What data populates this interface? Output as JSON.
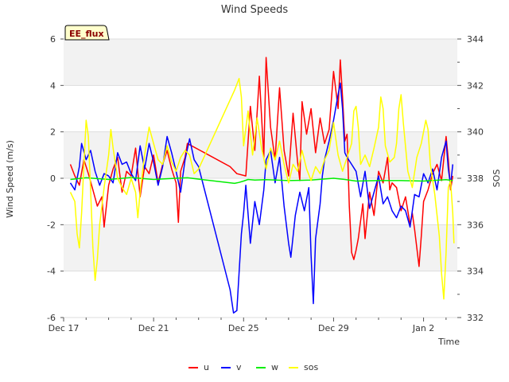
{
  "chart_data": {
    "type": "line",
    "title": "Wind Speeds",
    "site_badge": "EE_flux",
    "xlabel": "Time",
    "ylabel": "Wind Speed (m/s)",
    "y2label": "SOS",
    "x_ticks": [
      {
        "day": 0,
        "label": "Dec 17"
      },
      {
        "day": 4,
        "label": "Dec 21"
      },
      {
        "day": 8,
        "label": "Dec 25"
      },
      {
        "day": 12,
        "label": "Dec 29"
      },
      {
        "day": 16,
        "label": "Jan 2"
      }
    ],
    "xlim": [
      0,
      17.5
    ],
    "ylim": [
      -6,
      6
    ],
    "y_ticks": [
      -6,
      -4,
      -2,
      0,
      2,
      4,
      6
    ],
    "y2lim": [
      332,
      344
    ],
    "y2_ticks": [
      332,
      334,
      336,
      338,
      340,
      342,
      344
    ],
    "series": [
      {
        "name": "u",
        "color": "#ff0000",
        "axis": "left",
        "points": [
          [
            0.3,
            0.6
          ],
          [
            0.5,
            0.1
          ],
          [
            0.7,
            -0.3
          ],
          [
            0.9,
            0.8
          ],
          [
            1.1,
            0.2
          ],
          [
            1.3,
            -0.5
          ],
          [
            1.5,
            -1.2
          ],
          [
            1.7,
            -0.8
          ],
          [
            1.8,
            -2.1
          ],
          [
            2.0,
            -0.3
          ],
          [
            2.2,
            0.4
          ],
          [
            2.4,
            0.9
          ],
          [
            2.6,
            -0.6
          ],
          [
            2.8,
            0.3
          ],
          [
            3.0,
            0.1
          ],
          [
            3.2,
            1.3
          ],
          [
            3.4,
            -0.8
          ],
          [
            3.6,
            0.5
          ],
          [
            3.8,
            0.2
          ],
          [
            4.0,
            1.0
          ],
          [
            4.2,
            -0.2
          ],
          [
            4.4,
            0.6
          ],
          [
            4.6,
            1.2
          ],
          [
            4.8,
            0.4
          ],
          [
            5.0,
            -0.2
          ],
          [
            5.1,
            -1.9
          ],
          [
            5.2,
            0.3
          ],
          [
            5.4,
            0.9
          ],
          [
            5.5,
            1.5
          ],
          [
            7.4,
            0.5
          ],
          [
            7.7,
            0.2
          ],
          [
            8.1,
            0.1
          ],
          [
            8.3,
            3.1
          ],
          [
            8.5,
            1.2
          ],
          [
            8.7,
            4.4
          ],
          [
            8.9,
            0.9
          ],
          [
            9.0,
            5.2
          ],
          [
            9.2,
            2.2
          ],
          [
            9.4,
            0.8
          ],
          [
            9.6,
            3.9
          ],
          [
            9.8,
            1.2
          ],
          [
            10.0,
            0.1
          ],
          [
            10.2,
            2.8
          ],
          [
            10.4,
            0.7
          ],
          [
            10.5,
            -0.1
          ],
          [
            10.6,
            3.3
          ],
          [
            10.8,
            1.9
          ],
          [
            11.0,
            3.0
          ],
          [
            11.2,
            1.1
          ],
          [
            11.4,
            2.6
          ],
          [
            11.6,
            1.5
          ],
          [
            11.8,
            2.1
          ],
          [
            12.0,
            4.6
          ],
          [
            12.2,
            3.0
          ],
          [
            12.3,
            5.1
          ],
          [
            12.4,
            3.5
          ],
          [
            12.5,
            1.6
          ],
          [
            12.6,
            1.9
          ],
          [
            12.7,
            -1.2
          ],
          [
            12.8,
            -3.2
          ],
          [
            12.9,
            -3.5
          ],
          [
            13.0,
            -3.1
          ],
          [
            13.1,
            -2.6
          ],
          [
            13.3,
            -1.1
          ],
          [
            13.4,
            -2.6
          ],
          [
            13.6,
            -0.6
          ],
          [
            13.8,
            -1.6
          ],
          [
            14.0,
            0.3
          ],
          [
            14.2,
            -0.2
          ],
          [
            14.4,
            0.9
          ],
          [
            14.5,
            -0.5
          ],
          [
            14.6,
            -0.2
          ],
          [
            14.8,
            -0.4
          ],
          [
            15.0,
            -1.4
          ],
          [
            15.2,
            -0.8
          ],
          [
            15.4,
            -2.0
          ],
          [
            15.5,
            -1.5
          ],
          [
            15.6,
            -2.2
          ],
          [
            15.8,
            -3.8
          ],
          [
            15.9,
            -2.5
          ],
          [
            16.0,
            -1.0
          ],
          [
            16.2,
            -0.5
          ],
          [
            16.4,
            0.2
          ],
          [
            16.6,
            0.6
          ],
          [
            16.8,
            -0.1
          ],
          [
            17.0,
            1.8
          ],
          [
            17.1,
            0.8
          ],
          [
            17.2,
            -0.5
          ],
          [
            17.3,
            0.1
          ]
        ]
      },
      {
        "name": "v",
        "color": "#0000ff",
        "axis": "left",
        "points": [
          [
            0.3,
            -0.2
          ],
          [
            0.5,
            -0.5
          ],
          [
            0.7,
            0.5
          ],
          [
            0.8,
            1.5
          ],
          [
            1.0,
            0.8
          ],
          [
            1.2,
            1.2
          ],
          [
            1.4,
            0.3
          ],
          [
            1.6,
            -0.3
          ],
          [
            1.8,
            0.2
          ],
          [
            2.0,
            0.1
          ],
          [
            2.2,
            -0.2
          ],
          [
            2.4,
            1.1
          ],
          [
            2.6,
            0.6
          ],
          [
            2.8,
            0.7
          ],
          [
            3.0,
            0.2
          ],
          [
            3.2,
            -0.1
          ],
          [
            3.4,
            1.4
          ],
          [
            3.6,
            0.4
          ],
          [
            3.8,
            1.5
          ],
          [
            4.0,
            0.7
          ],
          [
            4.2,
            -0.3
          ],
          [
            4.4,
            0.5
          ],
          [
            4.6,
            1.8
          ],
          [
            4.8,
            1.1
          ],
          [
            5.0,
            0.3
          ],
          [
            5.2,
            -0.6
          ],
          [
            5.4,
            0.8
          ],
          [
            5.6,
            1.7
          ],
          [
            5.8,
            0.8
          ],
          [
            6.0,
            0.5
          ],
          [
            7.4,
            -4.8
          ],
          [
            7.55,
            -5.8
          ],
          [
            7.7,
            -5.7
          ],
          [
            7.9,
            -2.4
          ],
          [
            8.0,
            -1.5
          ],
          [
            8.1,
            -0.3
          ],
          [
            8.3,
            -2.8
          ],
          [
            8.5,
            -1.0
          ],
          [
            8.7,
            -2.0
          ],
          [
            8.9,
            -0.5
          ],
          [
            9.0,
            0.8
          ],
          [
            9.2,
            1.2
          ],
          [
            9.4,
            -0.2
          ],
          [
            9.6,
            0.9
          ],
          [
            9.8,
            -1.2
          ],
          [
            10.0,
            -2.8
          ],
          [
            10.1,
            -3.4
          ],
          [
            10.3,
            -1.6
          ],
          [
            10.5,
            -0.6
          ],
          [
            10.7,
            -1.4
          ],
          [
            10.9,
            -0.4
          ],
          [
            11.0,
            -3.3
          ],
          [
            11.1,
            -5.4
          ],
          [
            11.2,
            -2.6
          ],
          [
            11.4,
            -1.1
          ],
          [
            11.5,
            0.1
          ],
          [
            11.6,
            0.8
          ],
          [
            11.8,
            1.6
          ],
          [
            12.0,
            2.5
          ],
          [
            12.2,
            3.6
          ],
          [
            12.3,
            4.1
          ],
          [
            12.4,
            3.0
          ],
          [
            12.5,
            1.1
          ],
          [
            12.6,
            0.9
          ],
          [
            12.8,
            0.6
          ],
          [
            13.0,
            0.3
          ],
          [
            13.2,
            -0.8
          ],
          [
            13.4,
            0.3
          ],
          [
            13.6,
            -1.3
          ],
          [
            13.8,
            -0.6
          ],
          [
            14.0,
            0.1
          ],
          [
            14.2,
            -1.1
          ],
          [
            14.4,
            -0.8
          ],
          [
            14.6,
            -1.4
          ],
          [
            14.8,
            -1.7
          ],
          [
            15.0,
            -1.2
          ],
          [
            15.2,
            -1.4
          ],
          [
            15.4,
            -2.1
          ],
          [
            15.6,
            -0.7
          ],
          [
            15.8,
            -0.8
          ],
          [
            16.0,
            0.2
          ],
          [
            16.2,
            -0.2
          ],
          [
            16.4,
            0.4
          ],
          [
            16.6,
            -0.5
          ],
          [
            16.8,
            0.9
          ],
          [
            17.0,
            1.6
          ],
          [
            17.1,
            0.4
          ],
          [
            17.2,
            -0.3
          ],
          [
            17.3,
            0.6
          ]
        ]
      },
      {
        "name": "w",
        "color": "#00ee00",
        "axis": "left",
        "points": [
          [
            0.3,
            -0.05
          ],
          [
            1.0,
            0.02
          ],
          [
            2.0,
            -0.05
          ],
          [
            3.0,
            0.03
          ],
          [
            4.0,
            -0.05
          ],
          [
            5.0,
            0.0
          ],
          [
            5.5,
            0.02
          ],
          [
            7.6,
            -0.22
          ],
          [
            7.8,
            -0.18
          ],
          [
            8.0,
            -0.12
          ],
          [
            8.2,
            -0.05
          ],
          [
            8.5,
            -0.08
          ],
          [
            9.0,
            -0.06
          ],
          [
            10.0,
            -0.1
          ],
          [
            11.0,
            -0.08
          ],
          [
            12.0,
            0.0
          ],
          [
            12.5,
            -0.05
          ],
          [
            13.0,
            -0.12
          ],
          [
            14.0,
            -0.1
          ],
          [
            15.0,
            -0.1
          ],
          [
            16.0,
            -0.12
          ],
          [
            17.0,
            -0.06
          ],
          [
            17.3,
            -0.1
          ]
        ]
      },
      {
        "name": "sos",
        "color": "#ffff00",
        "axis": "right",
        "points": [
          [
            0.3,
            337.4
          ],
          [
            0.5,
            337.0
          ],
          [
            0.6,
            335.6
          ],
          [
            0.7,
            335.0
          ],
          [
            0.8,
            336.5
          ],
          [
            0.9,
            338.6
          ],
          [
            1.0,
            340.5
          ],
          [
            1.1,
            339.8
          ],
          [
            1.2,
            337.5
          ],
          [
            1.3,
            335.0
          ],
          [
            1.4,
            333.6
          ],
          [
            1.5,
            334.5
          ],
          [
            1.6,
            336.0
          ],
          [
            1.8,
            337.6
          ],
          [
            2.0,
            339.0
          ],
          [
            2.1,
            340.1
          ],
          [
            2.2,
            339.3
          ],
          [
            2.4,
            338.0
          ],
          [
            2.6,
            337.6
          ],
          [
            2.8,
            337.3
          ],
          [
            3.0,
            338.0
          ],
          [
            3.2,
            337.4
          ],
          [
            3.3,
            336.3
          ],
          [
            3.4,
            337.4
          ],
          [
            3.6,
            339.0
          ],
          [
            3.8,
            340.2
          ],
          [
            4.0,
            339.5
          ],
          [
            4.2,
            338.8
          ],
          [
            4.4,
            338.6
          ],
          [
            4.6,
            339.4
          ],
          [
            4.8,
            338.7
          ],
          [
            5.0,
            338.3
          ],
          [
            5.2,
            338.9
          ],
          [
            5.4,
            339.2
          ],
          [
            5.6,
            339.0
          ],
          [
            5.8,
            338.2
          ],
          [
            6.0,
            338.4
          ],
          [
            7.6,
            341.8
          ],
          [
            7.8,
            342.3
          ],
          [
            7.9,
            341.5
          ],
          [
            8.0,
            339.4
          ],
          [
            8.2,
            340.9
          ],
          [
            8.4,
            339.0
          ],
          [
            8.6,
            340.6
          ],
          [
            8.8,
            339.3
          ],
          [
            9.0,
            338.4
          ],
          [
            9.2,
            339.3
          ],
          [
            9.4,
            338.8
          ],
          [
            9.6,
            339.6
          ],
          [
            9.8,
            338.6
          ],
          [
            10.0,
            337.8
          ],
          [
            10.2,
            338.6
          ],
          [
            10.4,
            338.3
          ],
          [
            10.6,
            339.2
          ],
          [
            10.8,
            338.4
          ],
          [
            11.0,
            337.9
          ],
          [
            11.2,
            338.5
          ],
          [
            11.4,
            338.2
          ],
          [
            11.6,
            338.8
          ],
          [
            11.8,
            339.2
          ],
          [
            12.0,
            340.4
          ],
          [
            12.2,
            339.0
          ],
          [
            12.4,
            338.3
          ],
          [
            12.6,
            338.9
          ],
          [
            12.8,
            339.5
          ],
          [
            12.9,
            340.9
          ],
          [
            13.0,
            341.1
          ],
          [
            13.1,
            340.2
          ],
          [
            13.2,
            338.6
          ],
          [
            13.4,
            339.0
          ],
          [
            13.6,
            338.5
          ],
          [
            13.8,
            339.3
          ],
          [
            14.0,
            340.2
          ],
          [
            14.1,
            341.5
          ],
          [
            14.2,
            341.0
          ],
          [
            14.3,
            339.4
          ],
          [
            14.5,
            338.7
          ],
          [
            14.7,
            338.9
          ],
          [
            14.8,
            339.5
          ],
          [
            14.9,
            341.0
          ],
          [
            15.0,
            341.6
          ],
          [
            15.1,
            340.4
          ],
          [
            15.3,
            338.3
          ],
          [
            15.5,
            337.6
          ],
          [
            15.7,
            338.9
          ],
          [
            15.9,
            339.5
          ],
          [
            16.1,
            340.5
          ],
          [
            16.2,
            340.1
          ],
          [
            16.3,
            338.6
          ],
          [
            16.5,
            337.3
          ],
          [
            16.7,
            335.5
          ],
          [
            16.8,
            333.9
          ],
          [
            16.9,
            332.8
          ],
          [
            17.0,
            334.8
          ],
          [
            17.1,
            337.6
          ],
          [
            17.2,
            337.9
          ],
          [
            17.3,
            336.5
          ],
          [
            17.35,
            335.2
          ]
        ]
      }
    ]
  }
}
